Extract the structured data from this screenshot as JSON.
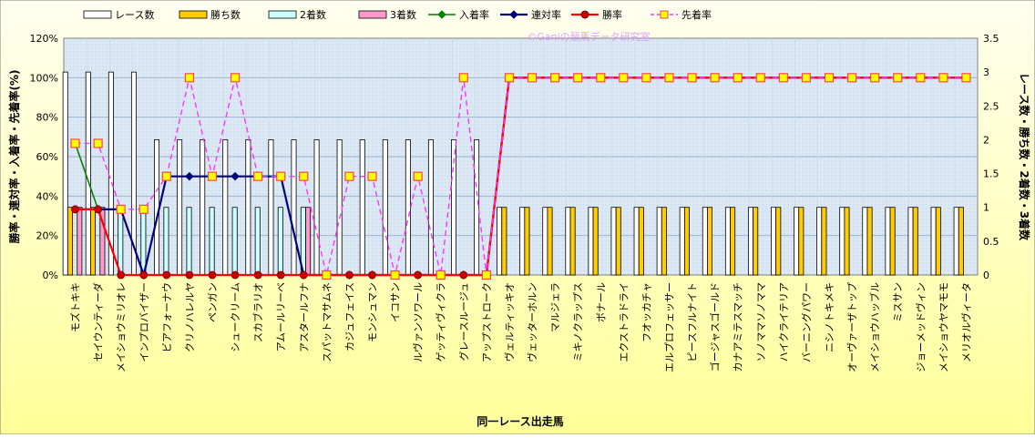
{
  "chart_data": {
    "type": "bar",
    "title": "",
    "watermark": "©Ganiの競馬データ研究室",
    "xlabel": "同一レース出走馬",
    "ylabel_left": "勝率・連対率・入着率・先着率(%)",
    "ylabel_right": "レース数・勝ち数・2着数・3着数",
    "yticks_left": [
      "0%",
      "20%",
      "40%",
      "60%",
      "80%",
      "100%",
      "120%"
    ],
    "yticks_right": [
      "0",
      "0.5",
      "1",
      "1.5",
      "2",
      "2.5",
      "3",
      "3.5"
    ],
    "ylim_left": [
      0,
      120
    ],
    "ylim_right": [
      0,
      3.5
    ],
    "grid": true,
    "legend_position": "top",
    "colors": {
      "race_bar": "#ffffff",
      "win_bar": "#ffcc00",
      "second_bar": "#ccffff",
      "third_bar": "#ff99cc",
      "place_rate": "#008000",
      "rentai_rate": "#000080",
      "win_rate": "#ff0000",
      "senchaku_rate": "#ff33ff",
      "plot_bg": "#dce9f5",
      "outer_bg": "#ffffc0"
    },
    "categories": [
      "モズトキキ",
      "セイウンティーダ",
      "メイショウミリオレ",
      "インプロバイザー",
      "ビアフォーナウ",
      "クリノハレルヤ",
      "ペンガン",
      "シュークリーム",
      "スカブラリオ",
      "アムールリーベ",
      "アスタールフナ",
      "スパットマサムネ",
      "カジュフェイス",
      "モンシュマン",
      "イコサン",
      "ルヴァンソワール",
      "ゲッティヴィクラ",
      "グレースルージュ",
      "アップストローク",
      "ヴェルティッキオ",
      "ヴェッターホルン",
      "マルジェラ",
      "ミキノクラップス",
      "ボナール",
      "エクストラドライ",
      "フオッカチャ",
      "エルプロフェッサー",
      "ピースフルナイト",
      "ゴージャスゴールド",
      "カナアミテスマッチ",
      "ソノママソノママ",
      "ハイクライテリア",
      "バーニングパワー",
      "ニシノトキメキ",
      "オーヴァーザトップ",
      "メイショウハッブル",
      "ミスサン",
      "ジョーメッドヴィン",
      "メイショウヤマモモ",
      "メリオルヴィータ"
    ],
    "series": [
      {
        "name": "レース数",
        "axis": "right",
        "kind": "bar",
        "values": [
          3,
          3,
          3,
          3,
          2,
          2,
          2,
          2,
          2,
          2,
          2,
          2,
          2,
          2,
          2,
          2,
          2,
          2,
          2,
          1,
          1,
          1,
          1,
          1,
          1,
          1,
          1,
          1,
          1,
          1,
          1,
          1,
          1,
          1,
          1,
          1,
          1,
          1,
          1,
          1
        ]
      },
      {
        "name": "勝ち数",
        "axis": "right",
        "kind": "bar",
        "values": [
          1,
          1,
          0,
          0,
          0,
          0,
          0,
          0,
          0,
          0,
          0,
          0,
          0,
          0,
          0,
          0,
          0,
          0,
          0,
          1,
          1,
          1,
          1,
          1,
          1,
          1,
          1,
          1,
          1,
          1,
          1,
          1,
          1,
          1,
          1,
          1,
          1,
          1,
          1,
          1
        ]
      },
      {
        "name": "2着数",
        "axis": "right",
        "kind": "bar",
        "values": [
          0,
          0,
          1,
          1,
          1,
          1,
          1,
          1,
          1,
          1,
          1,
          0,
          0,
          0,
          0,
          0,
          0,
          0,
          0,
          0,
          0,
          0,
          0,
          0,
          0,
          0,
          0,
          0,
          0,
          0,
          0,
          0,
          0,
          0,
          0,
          0,
          0,
          0,
          0,
          0
        ]
      },
      {
        "name": "3着数",
        "axis": "right",
        "kind": "bar",
        "values": [
          1,
          1,
          0,
          0,
          0,
          0,
          0,
          0,
          0,
          0,
          1,
          0,
          0,
          0,
          0,
          0,
          0,
          0,
          0,
          0,
          0,
          0,
          0,
          0,
          0,
          0,
          0,
          0,
          0,
          0,
          0,
          0,
          0,
          0,
          0,
          0,
          0,
          0,
          0,
          0
        ]
      },
      {
        "name": "入着率",
        "axis": "left",
        "kind": "line",
        "values": [
          66.7,
          33.3,
          33.3,
          0,
          50,
          50,
          50,
          50,
          50,
          50,
          0,
          0,
          0,
          0,
          0,
          0,
          0,
          0,
          0,
          100,
          100,
          100,
          100,
          100,
          100,
          100,
          100,
          100,
          100,
          100,
          100,
          100,
          100,
          100,
          100,
          100,
          100,
          100,
          100,
          100
        ]
      },
      {
        "name": "連対率",
        "axis": "left",
        "kind": "line",
        "values": [
          33.3,
          33.3,
          33.3,
          0,
          50,
          50,
          50,
          50,
          50,
          50,
          0,
          0,
          0,
          0,
          0,
          0,
          0,
          0,
          0,
          100,
          100,
          100,
          100,
          100,
          100,
          100,
          100,
          100,
          100,
          100,
          100,
          100,
          100,
          100,
          100,
          100,
          100,
          100,
          100,
          100
        ]
      },
      {
        "name": "勝率",
        "axis": "left",
        "kind": "line",
        "values": [
          33.3,
          33.3,
          0,
          0,
          0,
          0,
          0,
          0,
          0,
          0,
          0,
          0,
          0,
          0,
          0,
          0,
          0,
          0,
          0,
          100,
          100,
          100,
          100,
          100,
          100,
          100,
          100,
          100,
          100,
          100,
          100,
          100,
          100,
          100,
          100,
          100,
          100,
          100,
          100,
          100
        ]
      },
      {
        "name": "先着率",
        "axis": "left",
        "kind": "line",
        "values": [
          66.7,
          66.7,
          33.3,
          33.3,
          50,
          100,
          50,
          100,
          50,
          50,
          50,
          0,
          50,
          50,
          0,
          50,
          0,
          100,
          0,
          100,
          100,
          100,
          100,
          100,
          100,
          100,
          100,
          100,
          100,
          100,
          100,
          100,
          100,
          100,
          100,
          100,
          100,
          100,
          100,
          100
        ]
      }
    ]
  }
}
